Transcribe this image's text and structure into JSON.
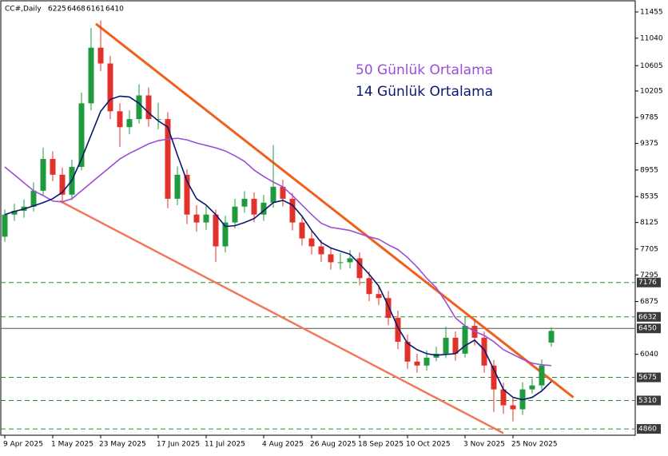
{
  "chart_data": {
    "type": "candlestick",
    "title": "CC#,Daily",
    "categories": [
      "9 Apr 2025",
      null,
      null,
      null,
      null,
      "1 May 2025",
      null,
      null,
      null,
      null,
      "23 May 2025",
      null,
      null,
      null,
      null,
      null,
      "17 Jun 2025",
      null,
      null,
      null,
      null,
      "11 Jul 2025",
      null,
      null,
      null,
      null,
      null,
      "4 Aug 2025",
      null,
      null,
      null,
      null,
      "26 Aug 2025",
      null,
      null,
      null,
      null,
      "18 Sep 2025",
      null,
      null,
      null,
      null,
      "10 Oct 2025",
      null,
      null,
      null,
      null,
      null,
      "3 Nov 2025",
      null,
      null,
      null,
      null,
      "25 Nov 2025",
      null,
      null,
      null,
      null
    ],
    "candles": [
      [
        7900,
        8330,
        7820,
        8250
      ],
      [
        8250,
        8420,
        8150,
        8310
      ],
      [
        8310,
        8490,
        8200,
        8376
      ],
      [
        8376,
        8760,
        8300,
        8627
      ],
      [
        8627,
        9310,
        8560,
        9130
      ],
      [
        9130,
        9250,
        8780,
        8880
      ],
      [
        8880,
        8990,
        8440,
        8565
      ],
      [
        8565,
        9120,
        8480,
        9004
      ],
      [
        9004,
        10180,
        8950,
        10010
      ],
      [
        10010,
        11200,
        9900,
        10890
      ],
      [
        10890,
        11320,
        10520,
        10640
      ],
      [
        10640,
        10760,
        9760,
        9884
      ],
      [
        9884,
        10010,
        9320,
        9633
      ],
      [
        9633,
        9900,
        9520,
        9760
      ],
      [
        9760,
        10310,
        9690,
        10135
      ],
      [
        10135,
        10260,
        9640,
        9760
      ],
      [
        9760,
        10020,
        9600,
        9760
      ],
      [
        9760,
        9870,
        8350,
        8500
      ],
      [
        8500,
        9010,
        8400,
        8880
      ],
      [
        8880,
        8970,
        8100,
        8250
      ],
      [
        8250,
        8400,
        7980,
        8125
      ],
      [
        8125,
        8390,
        8010,
        8250
      ],
      [
        8250,
        8330,
        7500,
        7747
      ],
      [
        7747,
        8230,
        7650,
        8125
      ],
      [
        8125,
        8500,
        8030,
        8376
      ],
      [
        8376,
        8620,
        8280,
        8500
      ],
      [
        8500,
        8600,
        8130,
        8250
      ],
      [
        8250,
        8560,
        8150,
        8438
      ],
      [
        8438,
        9350,
        8360,
        8690
      ],
      [
        8690,
        8800,
        8380,
        8500
      ],
      [
        8500,
        8590,
        8000,
        8125
      ],
      [
        8125,
        8230,
        7760,
        7873
      ],
      [
        7873,
        7990,
        7620,
        7747
      ],
      [
        7747,
        7850,
        7500,
        7622
      ],
      [
        7622,
        7730,
        7380,
        7496
      ],
      [
        7496,
        7640,
        7380,
        7496
      ],
      [
        7496,
        7690,
        7400,
        7559
      ],
      [
        7559,
        7650,
        7130,
        7245
      ],
      [
        7245,
        7350,
        6880,
        6993
      ],
      [
        6993,
        7120,
        6820,
        6930
      ],
      [
        6930,
        7040,
        6500,
        6616
      ],
      [
        6616,
        6730,
        6120,
        6239
      ],
      [
        6239,
        6350,
        5810,
        5925
      ],
      [
        5925,
        6050,
        5750,
        5862
      ],
      [
        5862,
        6100,
        5780,
        5987
      ],
      [
        5987,
        6160,
        5930,
        6050
      ],
      [
        6050,
        6480,
        5980,
        6302
      ],
      [
        6302,
        6400,
        5940,
        6050
      ],
      [
        6050,
        6650,
        5990,
        6490
      ],
      [
        6490,
        6600,
        6180,
        6302
      ],
      [
        6302,
        6400,
        5750,
        5862
      ],
      [
        5862,
        5950,
        5130,
        5485
      ],
      [
        5485,
        5590,
        5100,
        5233
      ],
      [
        5233,
        5350,
        4980,
        5170
      ],
      [
        5170,
        5600,
        5080,
        5485
      ],
      [
        5485,
        5660,
        5420,
        5548
      ],
      [
        5548,
        5960,
        5480,
        5862
      ],
      [
        6225,
        6468,
        6161,
        6410
      ]
    ],
    "up_color": "#1f9a3c",
    "down_color": "#e0322a",
    "series": [
      {
        "name": "50 Günlük Ortalama",
        "color": "#9a4ed8",
        "values": [
          9004,
          8879,
          8753,
          8627,
          8552,
          8464,
          8451,
          8501,
          8627,
          8753,
          8879,
          9004,
          9130,
          9218,
          9293,
          9369,
          9419,
          9444,
          9457,
          9432,
          9381,
          9344,
          9306,
          9256,
          9180,
          9092,
          8954,
          8853,
          8765,
          8690,
          8552,
          8401,
          8250,
          8112,
          8049,
          8024,
          7999,
          7948,
          7898,
          7860,
          7772,
          7697,
          7571,
          7421,
          7244,
          7094,
          6867,
          6616,
          6490,
          6402,
          6339,
          6239,
          6113,
          6038,
          5962,
          5900,
          5874,
          5862
        ]
      },
      {
        "name": "14 Günlük Ortalama",
        "color": "#0b1670",
        "values": [
          8250,
          8300,
          8338,
          8388,
          8439,
          8501,
          8602,
          8791,
          9130,
          9507,
          9884,
          10073,
          10123,
          10110,
          10010,
          9859,
          9733,
          9633,
          9193,
          8778,
          8501,
          8401,
          8250,
          8062,
          8074,
          8124,
          8187,
          8313,
          8439,
          8476,
          8401,
          8225,
          7999,
          7810,
          7722,
          7672,
          7622,
          7471,
          7307,
          7119,
          6805,
          6465,
          6214,
          6113,
          6050,
          6025,
          6038,
          6050,
          6176,
          6264,
          6113,
          5799,
          5485,
          5359,
          5321,
          5359,
          5460,
          5610
        ]
      }
    ],
    "trendlines": [
      {
        "color": "#f0601c",
        "points": [
          [
            9.5,
            11267
          ],
          [
            59.3,
            5359
          ]
        ]
      },
      {
        "color": "#f27658",
        "points": [
          [
            5.75,
            8464
          ],
          [
            52,
            4793
          ]
        ]
      }
    ],
    "levels": [
      {
        "value": 7176,
        "style": "dashed"
      },
      {
        "value": 6632,
        "style": "dashed"
      },
      {
        "value": 6450,
        "style": "solid"
      },
      {
        "value": 5675,
        "style": "dashed"
      },
      {
        "value": 5310,
        "style": "dashed"
      },
      {
        "value": 4860,
        "style": "dashed"
      }
    ],
    "ylim": [
      4760,
      11644
    ],
    "yticks": [
      11455,
      11040,
      10605,
      10205,
      9785,
      9375,
      8955,
      8535,
      8125,
      7705,
      7295,
      6875,
      6040
    ]
  }
}
